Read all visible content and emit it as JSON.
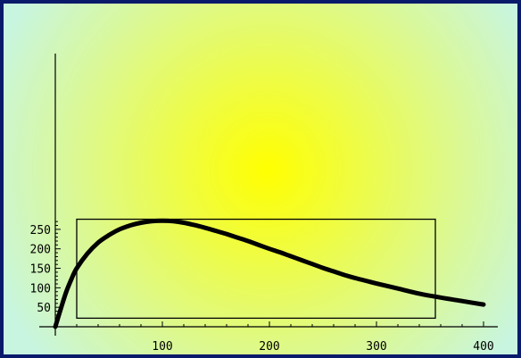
{
  "chart_data": {
    "type": "line",
    "title": "",
    "xlabel": "",
    "ylabel": "",
    "xlim": [
      0,
      410
    ],
    "ylim": [
      0,
      280
    ],
    "x_ticks": [
      100,
      200,
      300,
      400
    ],
    "y_ticks": [
      50,
      100,
      150,
      200,
      250
    ],
    "grid": false,
    "background": {
      "style": "radial-gradient",
      "center_color": "#ffff00",
      "edge_color": "#c8f5e0"
    },
    "frame_color": "#0a1a6b",
    "line_color": "#000000",
    "rectangle": {
      "x": [
        20,
        355
      ],
      "y": [
        22,
        276
      ]
    },
    "series": [
      {
        "x": [
          0,
          5,
          10,
          15,
          20,
          30,
          40,
          50,
          60,
          70,
          80,
          90,
          100,
          110,
          120,
          130,
          140,
          150,
          160,
          170,
          180,
          190,
          200,
          210,
          220,
          230,
          240,
          250,
          260,
          270,
          280,
          290,
          300,
          320,
          340,
          360,
          380,
          400
        ],
        "y": [
          0,
          45,
          88,
          122,
          150,
          188,
          216,
          235,
          250,
          260,
          267,
          271,
          272,
          271,
          267,
          261,
          254,
          246,
          238,
          229,
          220,
          210,
          200,
          191,
          181,
          171,
          161,
          151,
          142,
          133,
          125,
          118,
          111,
          98,
          85,
          75,
          66,
          57
        ]
      }
    ]
  }
}
